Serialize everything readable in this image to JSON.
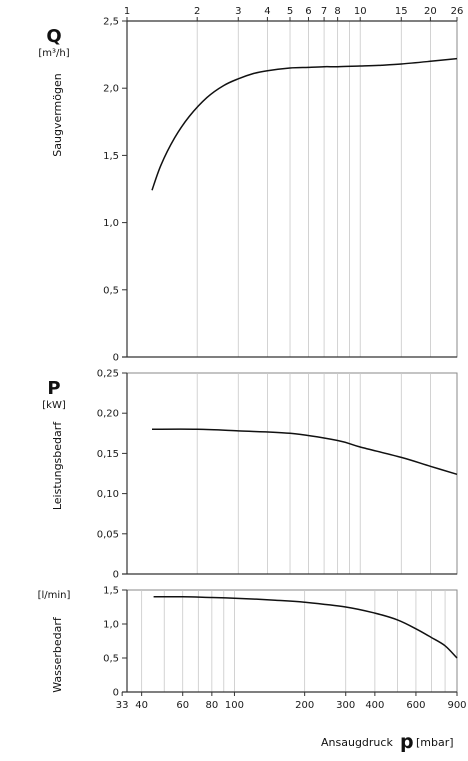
{
  "chart_data": [
    {
      "type": "line",
      "id": "saugvermoegen",
      "symbol": "Q",
      "unit": "[m³/h]",
      "ylabel": "Saugvermögen",
      "ylim": [
        0,
        2.5
      ],
      "yticks": [
        "0",
        "0,5",
        "1,0",
        "1,5",
        "2,0",
        "2,5"
      ],
      "xaxis_top_ticks": [
        "1",
        "2",
        "3",
        "4",
        "5",
        "6",
        "7",
        "8",
        "10",
        "15",
        "20",
        "26"
      ],
      "xscale": "log",
      "grid": true,
      "series": [
        {
          "x": [
            1.28,
            1.4,
            1.6,
            1.85,
            2.2,
            2.6,
            3.0,
            3.5,
            4.0,
            5.0,
            6.0,
            7.0,
            8.0,
            10.0,
            12.0,
            15.0,
            20.0,
            26.0
          ],
          "values": [
            1.24,
            1.43,
            1.63,
            1.79,
            1.93,
            2.02,
            2.07,
            2.11,
            2.13,
            2.15,
            2.155,
            2.16,
            2.16,
            2.165,
            2.17,
            2.18,
            2.2,
            2.22
          ]
        }
      ]
    },
    {
      "type": "line",
      "id": "leistungsbedarf",
      "symbol": "P",
      "unit": "[kW]",
      "ylabel": "Leistungsbedarf",
      "ylim": [
        0,
        0.25
      ],
      "yticks": [
        "0",
        "0,05",
        "0,10",
        "0,15",
        "0,20",
        "0,25"
      ],
      "xscale": "log",
      "grid": true,
      "series": [
        {
          "x": [
            1.28,
            2.0,
            3.0,
            5.0,
            8.0,
            10.0,
            15.0,
            20.0,
            26.0
          ],
          "values": [
            0.18,
            0.18,
            0.178,
            0.175,
            0.166,
            0.158,
            0.145,
            0.134,
            0.124
          ]
        }
      ]
    },
    {
      "type": "line",
      "id": "wasserbedarf",
      "symbol": "",
      "unit": "[l/min]",
      "ylabel": "Wasserbedarf",
      "ylim": [
        0,
        1.5
      ],
      "yticks": [
        "0",
        "0,5",
        "1,0",
        "1,5"
      ],
      "xlabel": "Ansaugdruck",
      "xlabel_symbol": "p",
      "xlabel_unit": "[mbar]",
      "xaxis_bottom_ticks": [
        "33",
        "40",
        "60",
        "80",
        "100",
        "200",
        "300",
        "400",
        "600",
        "900"
      ],
      "xscale": "log",
      "grid": true,
      "series": [
        {
          "x": [
            45,
            60,
            80,
            100,
            150,
            200,
            300,
            400,
            500,
            600,
            700,
            800,
            900
          ],
          "values": [
            1.4,
            1.4,
            1.39,
            1.38,
            1.35,
            1.32,
            1.25,
            1.16,
            1.06,
            0.93,
            0.8,
            0.68,
            0.5
          ]
        }
      ]
    }
  ]
}
